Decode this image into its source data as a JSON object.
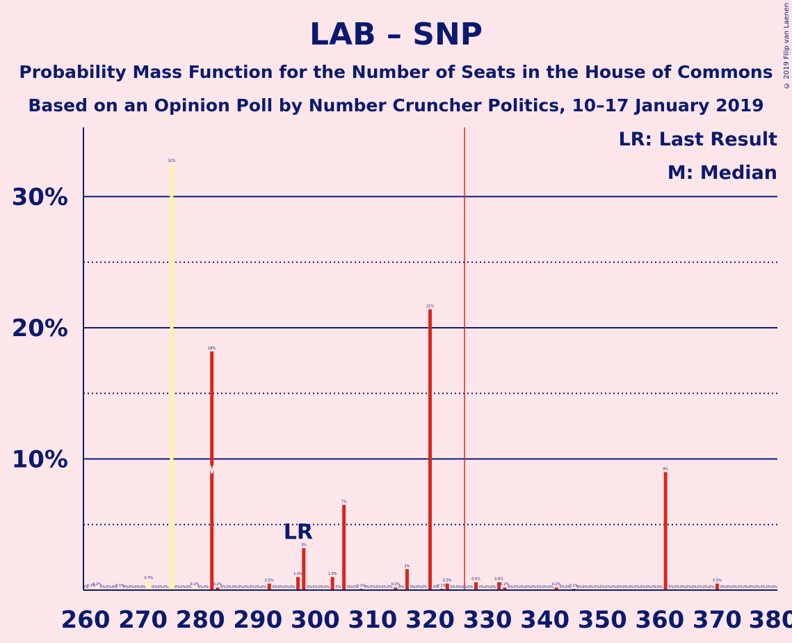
{
  "header": {
    "title": "LAB – SNP",
    "subtitle1": "Probability Mass Function for the Number of Seats in the House of Commons",
    "subtitle2": "Based on an Opinion Poll by Number Cruncher Politics, 10–17 January 2019",
    "copyright": "© 2019 Filip van Laenen"
  },
  "legend": {
    "lr": "LR: Last Result",
    "m": "M: Median"
  },
  "colors": {
    "background": "#fde6ea",
    "axis": "#0b1a6e",
    "red": "#d9261c",
    "yellow": "#fff59d",
    "majority_line": "#d9261c"
  },
  "chart_data": {
    "type": "bar",
    "x_range": [
      260,
      380
    ],
    "y_range": [
      0,
      35
    ],
    "x_ticks": [
      260,
      270,
      280,
      290,
      300,
      310,
      320,
      330,
      340,
      350,
      360,
      370,
      380
    ],
    "x_tick_labels": [
      "260",
      "270",
      "280",
      "290",
      "300",
      "310",
      "320",
      "330",
      "340",
      "350",
      "360",
      "370",
      "380"
    ],
    "y_ticks_major": [
      10,
      20,
      30
    ],
    "y_tick_labels": [
      "10%",
      "20%",
      "30%"
    ],
    "y_ticks_minor": [
      5,
      15,
      25
    ],
    "majority_line_x": 326,
    "last_result": {
      "x": 298,
      "label": "LR"
    },
    "median": {
      "x": 282,
      "label": "M"
    },
    "bars": [
      {
        "x": 260,
        "p": 0,
        "label": "0%"
      },
      {
        "x": 261,
        "p": 0.1,
        "label": "0.1%"
      },
      {
        "x": 262,
        "p": 0.2,
        "label": "0.2%"
      },
      {
        "x": 263,
        "p": 0,
        "label": "0%"
      },
      {
        "x": 264,
        "p": 0,
        "label": "0%"
      },
      {
        "x": 265,
        "p": 0,
        "label": "0%"
      },
      {
        "x": 266,
        "p": 0.1,
        "label": "0.1%"
      },
      {
        "x": 267,
        "p": 0,
        "label": "0%"
      },
      {
        "x": 268,
        "p": 0,
        "label": "0%"
      },
      {
        "x": 269,
        "p": 0,
        "label": "0%"
      },
      {
        "x": 270,
        "p": 0,
        "label": "0%"
      },
      {
        "x": 271,
        "p": 0.7,
        "label": "0.7%"
      },
      {
        "x": 272,
        "p": 0,
        "label": "0%"
      },
      {
        "x": 273,
        "p": 0,
        "label": "0%"
      },
      {
        "x": 274,
        "p": 0,
        "label": "0%"
      },
      {
        "x": 275,
        "p": 32.5,
        "label": "32%"
      },
      {
        "x": 276,
        "p": 0,
        "label": "0%"
      },
      {
        "x": 277,
        "p": 0,
        "label": "0%"
      },
      {
        "x": 278,
        "p": 0,
        "label": "0%"
      },
      {
        "x": 279,
        "p": 0.2,
        "label": "0.2%"
      },
      {
        "x": 280,
        "p": 0,
        "label": "0%"
      },
      {
        "x": 281,
        "p": 0,
        "label": "0%"
      },
      {
        "x": 282,
        "p": 18.2,
        "label": "18%"
      },
      {
        "x": 283,
        "p": 0.2,
        "label": "0.2%"
      },
      {
        "x": 284,
        "p": 0,
        "label": "0%"
      },
      {
        "x": 285,
        "p": 0,
        "label": "0%"
      },
      {
        "x": 286,
        "p": 0,
        "label": "0%"
      },
      {
        "x": 287,
        "p": 0,
        "label": "0%"
      },
      {
        "x": 288,
        "p": 0,
        "label": "0%"
      },
      {
        "x": 289,
        "p": 0,
        "label": "0%"
      },
      {
        "x": 290,
        "p": 0,
        "label": "0%"
      },
      {
        "x": 291,
        "p": 0,
        "label": "0%"
      },
      {
        "x": 292,
        "p": 0.5,
        "label": "0.5%"
      },
      {
        "x": 293,
        "p": 0,
        "label": "0%"
      },
      {
        "x": 294,
        "p": 0,
        "label": "0%"
      },
      {
        "x": 295,
        "p": 0,
        "label": "0%"
      },
      {
        "x": 296,
        "p": 0,
        "label": "0%"
      },
      {
        "x": 297,
        "p": 1.0,
        "label": "1.0%"
      },
      {
        "x": 298,
        "p": 3.2,
        "label": "3%"
      },
      {
        "x": 299,
        "p": 0,
        "label": "0%"
      },
      {
        "x": 300,
        "p": 0,
        "label": "0%"
      },
      {
        "x": 301,
        "p": 0,
        "label": "0%"
      },
      {
        "x": 302,
        "p": 0,
        "label": "0%"
      },
      {
        "x": 303,
        "p": 1.0,
        "label": "1.0%"
      },
      {
        "x": 304,
        "p": 0,
        "label": "0%"
      },
      {
        "x": 305,
        "p": 6.5,
        "label": "7%"
      },
      {
        "x": 306,
        "p": 0,
        "label": "0%"
      },
      {
        "x": 307,
        "p": 0,
        "label": "0%"
      },
      {
        "x": 308,
        "p": 0.1,
        "label": "0.1%"
      },
      {
        "x": 309,
        "p": 0,
        "label": "0%"
      },
      {
        "x": 310,
        "p": 0,
        "label": "0%"
      },
      {
        "x": 311,
        "p": 0,
        "label": "0%"
      },
      {
        "x": 312,
        "p": 0,
        "label": "0%"
      },
      {
        "x": 313,
        "p": 0,
        "label": "0%"
      },
      {
        "x": 314,
        "p": 0.2,
        "label": "0.2%"
      },
      {
        "x": 315,
        "p": 0,
        "label": "0%"
      },
      {
        "x": 316,
        "p": 1.6,
        "label": "2%"
      },
      {
        "x": 317,
        "p": 0,
        "label": "0%"
      },
      {
        "x": 318,
        "p": 0,
        "label": "0%"
      },
      {
        "x": 319,
        "p": 0,
        "label": "0%"
      },
      {
        "x": 320,
        "p": 21.4,
        "label": "21%"
      },
      {
        "x": 321,
        "p": 0,
        "label": "0%"
      },
      {
        "x": 322,
        "p": 0.1,
        "label": "0.1%"
      },
      {
        "x": 323,
        "p": 0.5,
        "label": "0.5%"
      },
      {
        "x": 324,
        "p": 0,
        "label": "0%"
      },
      {
        "x": 325,
        "p": 0,
        "label": "0%"
      },
      {
        "x": 326,
        "p": 0,
        "label": "0%"
      },
      {
        "x": 327,
        "p": 0,
        "label": "0%"
      },
      {
        "x": 328,
        "p": 0.6,
        "label": "0.6%"
      },
      {
        "x": 329,
        "p": 0,
        "label": "0%"
      },
      {
        "x": 330,
        "p": 0,
        "label": "0%"
      },
      {
        "x": 331,
        "p": 0,
        "label": "0%"
      },
      {
        "x": 332,
        "p": 0.6,
        "label": "0.6%"
      },
      {
        "x": 333,
        "p": 0.2,
        "label": "0.2%"
      },
      {
        "x": 334,
        "p": 0,
        "label": "0%"
      },
      {
        "x": 335,
        "p": 0,
        "label": "0%"
      },
      {
        "x": 336,
        "p": 0,
        "label": "0%"
      },
      {
        "x": 337,
        "p": 0,
        "label": "0%"
      },
      {
        "x": 338,
        "p": 0,
        "label": "0%"
      },
      {
        "x": 339,
        "p": 0,
        "label": "0%"
      },
      {
        "x": 340,
        "p": 0,
        "label": "0%"
      },
      {
        "x": 341,
        "p": 0,
        "label": "0%"
      },
      {
        "x": 342,
        "p": 0.2,
        "label": "0.2%"
      },
      {
        "x": 343,
        "p": 0,
        "label": "0%"
      },
      {
        "x": 344,
        "p": 0,
        "label": "0%"
      },
      {
        "x": 345,
        "p": 0.1,
        "label": "0.1%"
      },
      {
        "x": 346,
        "p": 0,
        "label": "0%"
      },
      {
        "x": 347,
        "p": 0,
        "label": "0%"
      },
      {
        "x": 348,
        "p": 0,
        "label": "0%"
      },
      {
        "x": 349,
        "p": 0,
        "label": "0%"
      },
      {
        "x": 350,
        "p": 0,
        "label": "0%"
      },
      {
        "x": 351,
        "p": 0,
        "label": "0%"
      },
      {
        "x": 352,
        "p": 0,
        "label": "0%"
      },
      {
        "x": 353,
        "p": 0,
        "label": "0%"
      },
      {
        "x": 354,
        "p": 0,
        "label": "0%"
      },
      {
        "x": 355,
        "p": 0,
        "label": "0%"
      },
      {
        "x": 356,
        "p": 0,
        "label": "0%"
      },
      {
        "x": 357,
        "p": 0,
        "label": "0%"
      },
      {
        "x": 358,
        "p": 0,
        "label": "0%"
      },
      {
        "x": 359,
        "p": 0,
        "label": "0%"
      },
      {
        "x": 360,
        "p": 0,
        "label": "0%"
      },
      {
        "x": 361,
        "p": 9.0,
        "label": "9%"
      },
      {
        "x": 362,
        "p": 0,
        "label": "0%"
      },
      {
        "x": 363,
        "p": 0,
        "label": "0%"
      },
      {
        "x": 364,
        "p": 0,
        "label": "0%"
      },
      {
        "x": 365,
        "p": 0,
        "label": "0%"
      },
      {
        "x": 366,
        "p": 0,
        "label": "0%"
      },
      {
        "x": 367,
        "p": 0,
        "label": "0%"
      },
      {
        "x": 368,
        "p": 0,
        "label": "0%"
      },
      {
        "x": 369,
        "p": 0,
        "label": "0%"
      },
      {
        "x": 370,
        "p": 0.5,
        "label": "0.5%"
      },
      {
        "x": 371,
        "p": 0,
        "label": "0%"
      },
      {
        "x": 372,
        "p": 0,
        "label": "0%"
      },
      {
        "x": 373,
        "p": 0,
        "label": "0%"
      },
      {
        "x": 374,
        "p": 0,
        "label": "0%"
      },
      {
        "x": 375,
        "p": 0,
        "label": "0%"
      },
      {
        "x": 376,
        "p": 0,
        "label": "0%"
      },
      {
        "x": 377,
        "p": 0,
        "label": "0%"
      },
      {
        "x": 378,
        "p": 0,
        "label": "0%"
      },
      {
        "x": 379,
        "p": 0,
        "label": "0%"
      },
      {
        "x": 380,
        "p": 0,
        "label": "0%"
      }
    ]
  }
}
